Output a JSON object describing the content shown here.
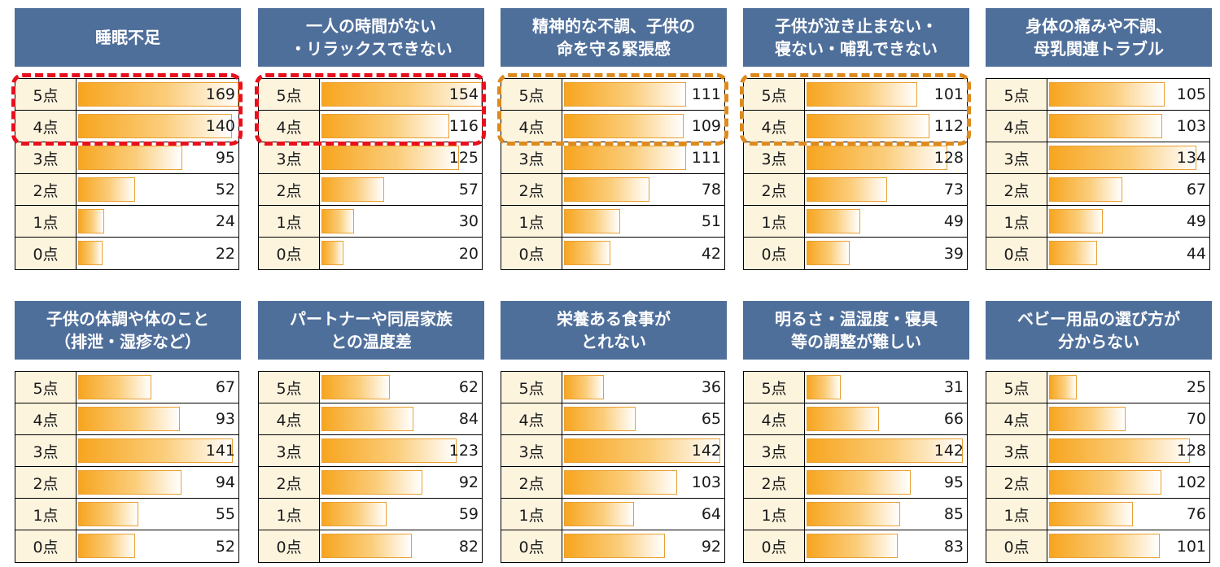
{
  "chart_data": [
    {
      "type": "bar",
      "title": "睡眠不足",
      "categories": [
        "5点",
        "4点",
        "3点",
        "2点",
        "1点",
        "0点"
      ],
      "values": [
        169,
        140,
        95,
        52,
        24,
        22
      ],
      "highlight": "red"
    },
    {
      "type": "bar",
      "title": "一人の時間がない\n・リラックスできない",
      "categories": [
        "5点",
        "4点",
        "3点",
        "2点",
        "1点",
        "0点"
      ],
      "values": [
        154,
        116,
        125,
        57,
        30,
        20
      ],
      "highlight": "red"
    },
    {
      "type": "bar",
      "title": "精神的な不調、子供の\n命を守る緊張感",
      "categories": [
        "5点",
        "4点",
        "3点",
        "2点",
        "1点",
        "0点"
      ],
      "values": [
        111,
        109,
        111,
        78,
        51,
        42
      ],
      "highlight": "orange"
    },
    {
      "type": "bar",
      "title": "子供が泣き止まない・\n寝ない・哺乳できない",
      "categories": [
        "5点",
        "4点",
        "3点",
        "2点",
        "1点",
        "0点"
      ],
      "values": [
        101,
        112,
        128,
        73,
        49,
        39
      ],
      "highlight": "orange"
    },
    {
      "type": "bar",
      "title": "身体の痛みや不調、\n母乳関連トラブル",
      "categories": [
        "5点",
        "4点",
        "3点",
        "2点",
        "1点",
        "0点"
      ],
      "values": [
        105,
        103,
        134,
        67,
        49,
        44
      ]
    },
    {
      "type": "bar",
      "title": "子供の体調や体のこと\n（排泄・湿疹など）",
      "categories": [
        "5点",
        "4点",
        "3点",
        "2点",
        "1点",
        "0点"
      ],
      "values": [
        67,
        93,
        141,
        94,
        55,
        52
      ]
    },
    {
      "type": "bar",
      "title": "パートナーや同居家族\nとの温度差",
      "categories": [
        "5点",
        "4点",
        "3点",
        "2点",
        "1点",
        "0点"
      ],
      "values": [
        62,
        84,
        123,
        92,
        59,
        82
      ]
    },
    {
      "type": "bar",
      "title": "栄養ある食事が\nとれない",
      "categories": [
        "5点",
        "4点",
        "3点",
        "2点",
        "1点",
        "0点"
      ],
      "values": [
        36,
        65,
        142,
        103,
        64,
        92
      ]
    },
    {
      "type": "bar",
      "title": "明るさ・温湿度・寝具\n等の調整が難しい",
      "categories": [
        "5点",
        "4点",
        "3点",
        "2点",
        "1点",
        "0点"
      ],
      "values": [
        31,
        66,
        142,
        95,
        85,
        83
      ]
    },
    {
      "type": "bar",
      "title": "ベビー用品の選び方が\n分からない",
      "categories": [
        "5点",
        "4点",
        "3点",
        "2点",
        "1点",
        "0点"
      ],
      "values": [
        25,
        70,
        128,
        102,
        76,
        101
      ]
    }
  ],
  "colors": {
    "header": "#4f6f9b",
    "bar": "#f7a51f",
    "label_bg": "#fdf4de",
    "highlight_red": "#e8101d",
    "highlight_orange": "#dd8a1e"
  }
}
